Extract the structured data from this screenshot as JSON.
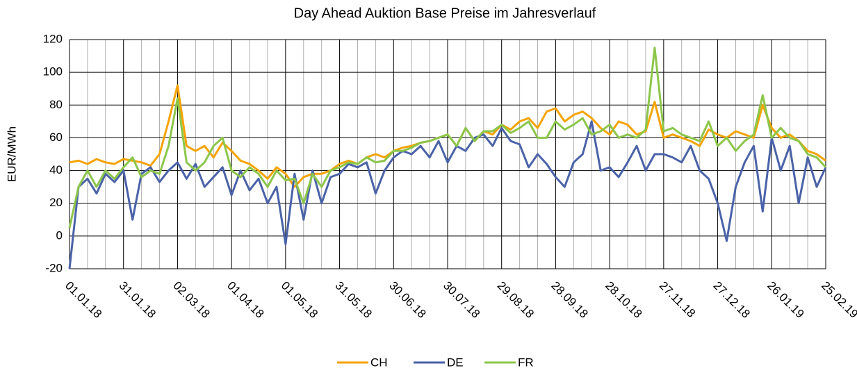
{
  "chart_data": {
    "type": "line",
    "title": "Day Ahead Auktion Base Preise im Jahresverlauf",
    "y_label": "EUR/MWh",
    "x": [
      "01.01.18",
      "06.01.18",
      "11.01.18",
      "16.01.18",
      "21.01.18",
      "26.01.18",
      "31.01.18",
      "05.02.18",
      "10.02.18",
      "15.02.18",
      "20.02.18",
      "25.02.18",
      "02.03.18",
      "07.03.18",
      "12.03.18",
      "17.03.18",
      "22.03.18",
      "27.03.18",
      "01.04.18",
      "06.04.18",
      "11.04.18",
      "16.04.18",
      "21.04.18",
      "26.04.18",
      "01.05.18",
      "06.05.18",
      "11.05.18",
      "16.05.18",
      "21.05.18",
      "26.05.18",
      "31.05.18",
      "05.06.18",
      "10.06.18",
      "15.06.18",
      "20.06.18",
      "25.06.18",
      "30.06.18",
      "05.07.18",
      "10.07.18",
      "15.07.18",
      "20.07.18",
      "25.07.18",
      "30.07.18",
      "04.08.18",
      "09.08.18",
      "14.08.18",
      "19.08.18",
      "24.08.18",
      "29.08.18",
      "03.09.18",
      "08.09.18",
      "13.09.18",
      "18.09.18",
      "23.09.18",
      "28.09.18",
      "03.10.18",
      "08.10.18",
      "13.10.18",
      "18.10.18",
      "23.10.18",
      "28.10.18",
      "02.11.18",
      "07.11.18",
      "12.11.18",
      "17.11.18",
      "22.11.18",
      "27.11.18",
      "02.12.18",
      "07.12.18",
      "12.12.18",
      "17.12.18",
      "22.12.18",
      "27.12.18",
      "01.01.19",
      "06.01.19",
      "11.01.19",
      "16.01.19",
      "21.01.19",
      "26.01.19",
      "31.01.19",
      "05.02.19",
      "10.02.19",
      "15.02.19",
      "20.02.19",
      "25.02.19"
    ],
    "series": [
      {
        "name": "CH",
        "color": "#f5a300",
        "values": [
          45,
          46,
          44,
          47,
          45,
          44,
          47,
          46,
          45,
          43,
          50,
          70,
          92,
          55,
          52,
          55,
          48,
          57,
          52,
          46,
          44,
          40,
          35,
          42,
          38,
          30,
          36,
          38,
          38,
          40,
          44,
          46,
          44,
          48,
          50,
          48,
          52,
          54,
          55,
          57,
          58,
          60,
          62,
          55,
          66,
          58,
          64,
          62,
          68,
          65,
          70,
          72,
          66,
          76,
          78,
          70,
          74,
          76,
          72,
          66,
          62,
          70,
          68,
          62,
          64,
          82,
          60,
          62,
          60,
          58,
          55,
          65,
          62,
          60,
          64,
          62,
          60,
          80,
          66,
          60,
          62,
          58,
          52,
          50,
          46
        ]
      },
      {
        "name": "DE",
        "color": "#4a62a8",
        "values": [
          -20,
          30,
          35,
          26,
          38,
          33,
          40,
          10,
          38,
          42,
          33,
          40,
          45,
          35,
          44,
          30,
          36,
          42,
          25,
          40,
          28,
          35,
          20,
          30,
          -5,
          38,
          10,
          40,
          20,
          36,
          38,
          44,
          42,
          45,
          26,
          40,
          48,
          52,
          50,
          55,
          48,
          58,
          45,
          55,
          52,
          60,
          62,
          55,
          66,
          58,
          56,
          42,
          50,
          44,
          36,
          30,
          45,
          50,
          70,
          40,
          42,
          36,
          45,
          55,
          40,
          50,
          50,
          48,
          45,
          55,
          40,
          35,
          20,
          -3,
          30,
          45,
          55,
          15,
          60,
          40,
          55,
          20,
          48,
          30,
          42
        ]
      },
      {
        "name": "FR",
        "color": "#8cc64a",
        "values": [
          5,
          30,
          40,
          30,
          40,
          35,
          42,
          48,
          36,
          40,
          38,
          55,
          84,
          45,
          40,
          45,
          55,
          60,
          40,
          36,
          42,
          38,
          30,
          40,
          34,
          35,
          20,
          38,
          30,
          40,
          42,
          45,
          44,
          48,
          45,
          46,
          52,
          52,
          54,
          57,
          58,
          60,
          62,
          55,
          66,
          58,
          64,
          64,
          68,
          63,
          66,
          70,
          60,
          60,
          70,
          65,
          68,
          72,
          62,
          64,
          68,
          60,
          62,
          60,
          65,
          115,
          64,
          66,
          62,
          60,
          58,
          70,
          55,
          60,
          52,
          58,
          62,
          86,
          60,
          66,
          60,
          58,
          50,
          48,
          42
        ]
      }
    ],
    "xlim": [
      "01.01.18",
      "25.02.19"
    ],
    "xticks": [
      "01.01.18",
      "31.01.18",
      "02.03.18",
      "01.04.18",
      "01.05.18",
      "31.05.18",
      "30.06.18",
      "30.07.18",
      "29.08.18",
      "28.09.18",
      "28.10.18",
      "27.11.18",
      "27.12.18",
      "26.01.19",
      "25.02.19"
    ],
    "minor_grid_divisions": 3,
    "ylim": [
      -20,
      120
    ],
    "yticks": [
      -20,
      0,
      20,
      40,
      60,
      80,
      100,
      120
    ],
    "grid": true,
    "legend": "bottom"
  }
}
